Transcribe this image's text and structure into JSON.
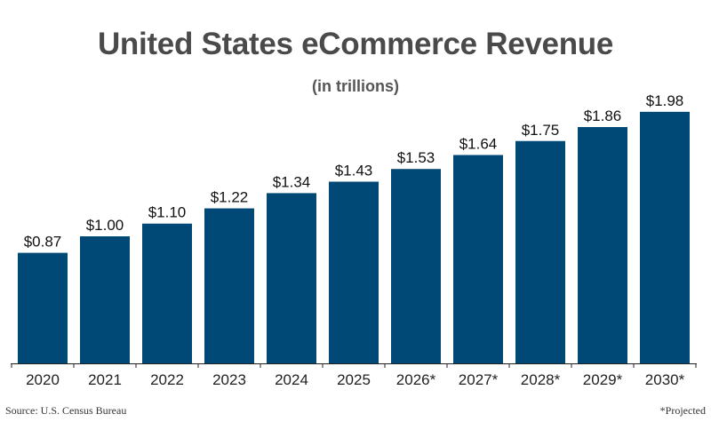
{
  "header": {
    "title": "United States eCommerce Revenue",
    "subtitle": "(in trillions)"
  },
  "footer": {
    "source": "Source: U.S. Census Bureau",
    "note": "*Projected"
  },
  "colors": {
    "bar": "#004876",
    "axis": "#222222"
  },
  "chart_data": {
    "type": "bar",
    "title": "United States eCommerce Revenue",
    "subtitle": "(in trillions)",
    "xlabel": "",
    "ylabel": "",
    "categories": [
      "2020",
      "2021",
      "2022",
      "2023",
      "2024",
      "2025",
      "2026*",
      "2027*",
      "2028*",
      "2029*",
      "2030*"
    ],
    "values": [
      0.87,
      1.0,
      1.1,
      1.22,
      1.34,
      1.43,
      1.53,
      1.64,
      1.75,
      1.86,
      1.98
    ],
    "value_labels": [
      "$0.87",
      "$1.00",
      "$1.10",
      "$1.22",
      "$1.34",
      "$1.43",
      "$1.53",
      "$1.64",
      "$1.75",
      "$1.86",
      "$1.98"
    ],
    "ylim": [
      0,
      2.0
    ],
    "grid": false,
    "legend": "none"
  }
}
